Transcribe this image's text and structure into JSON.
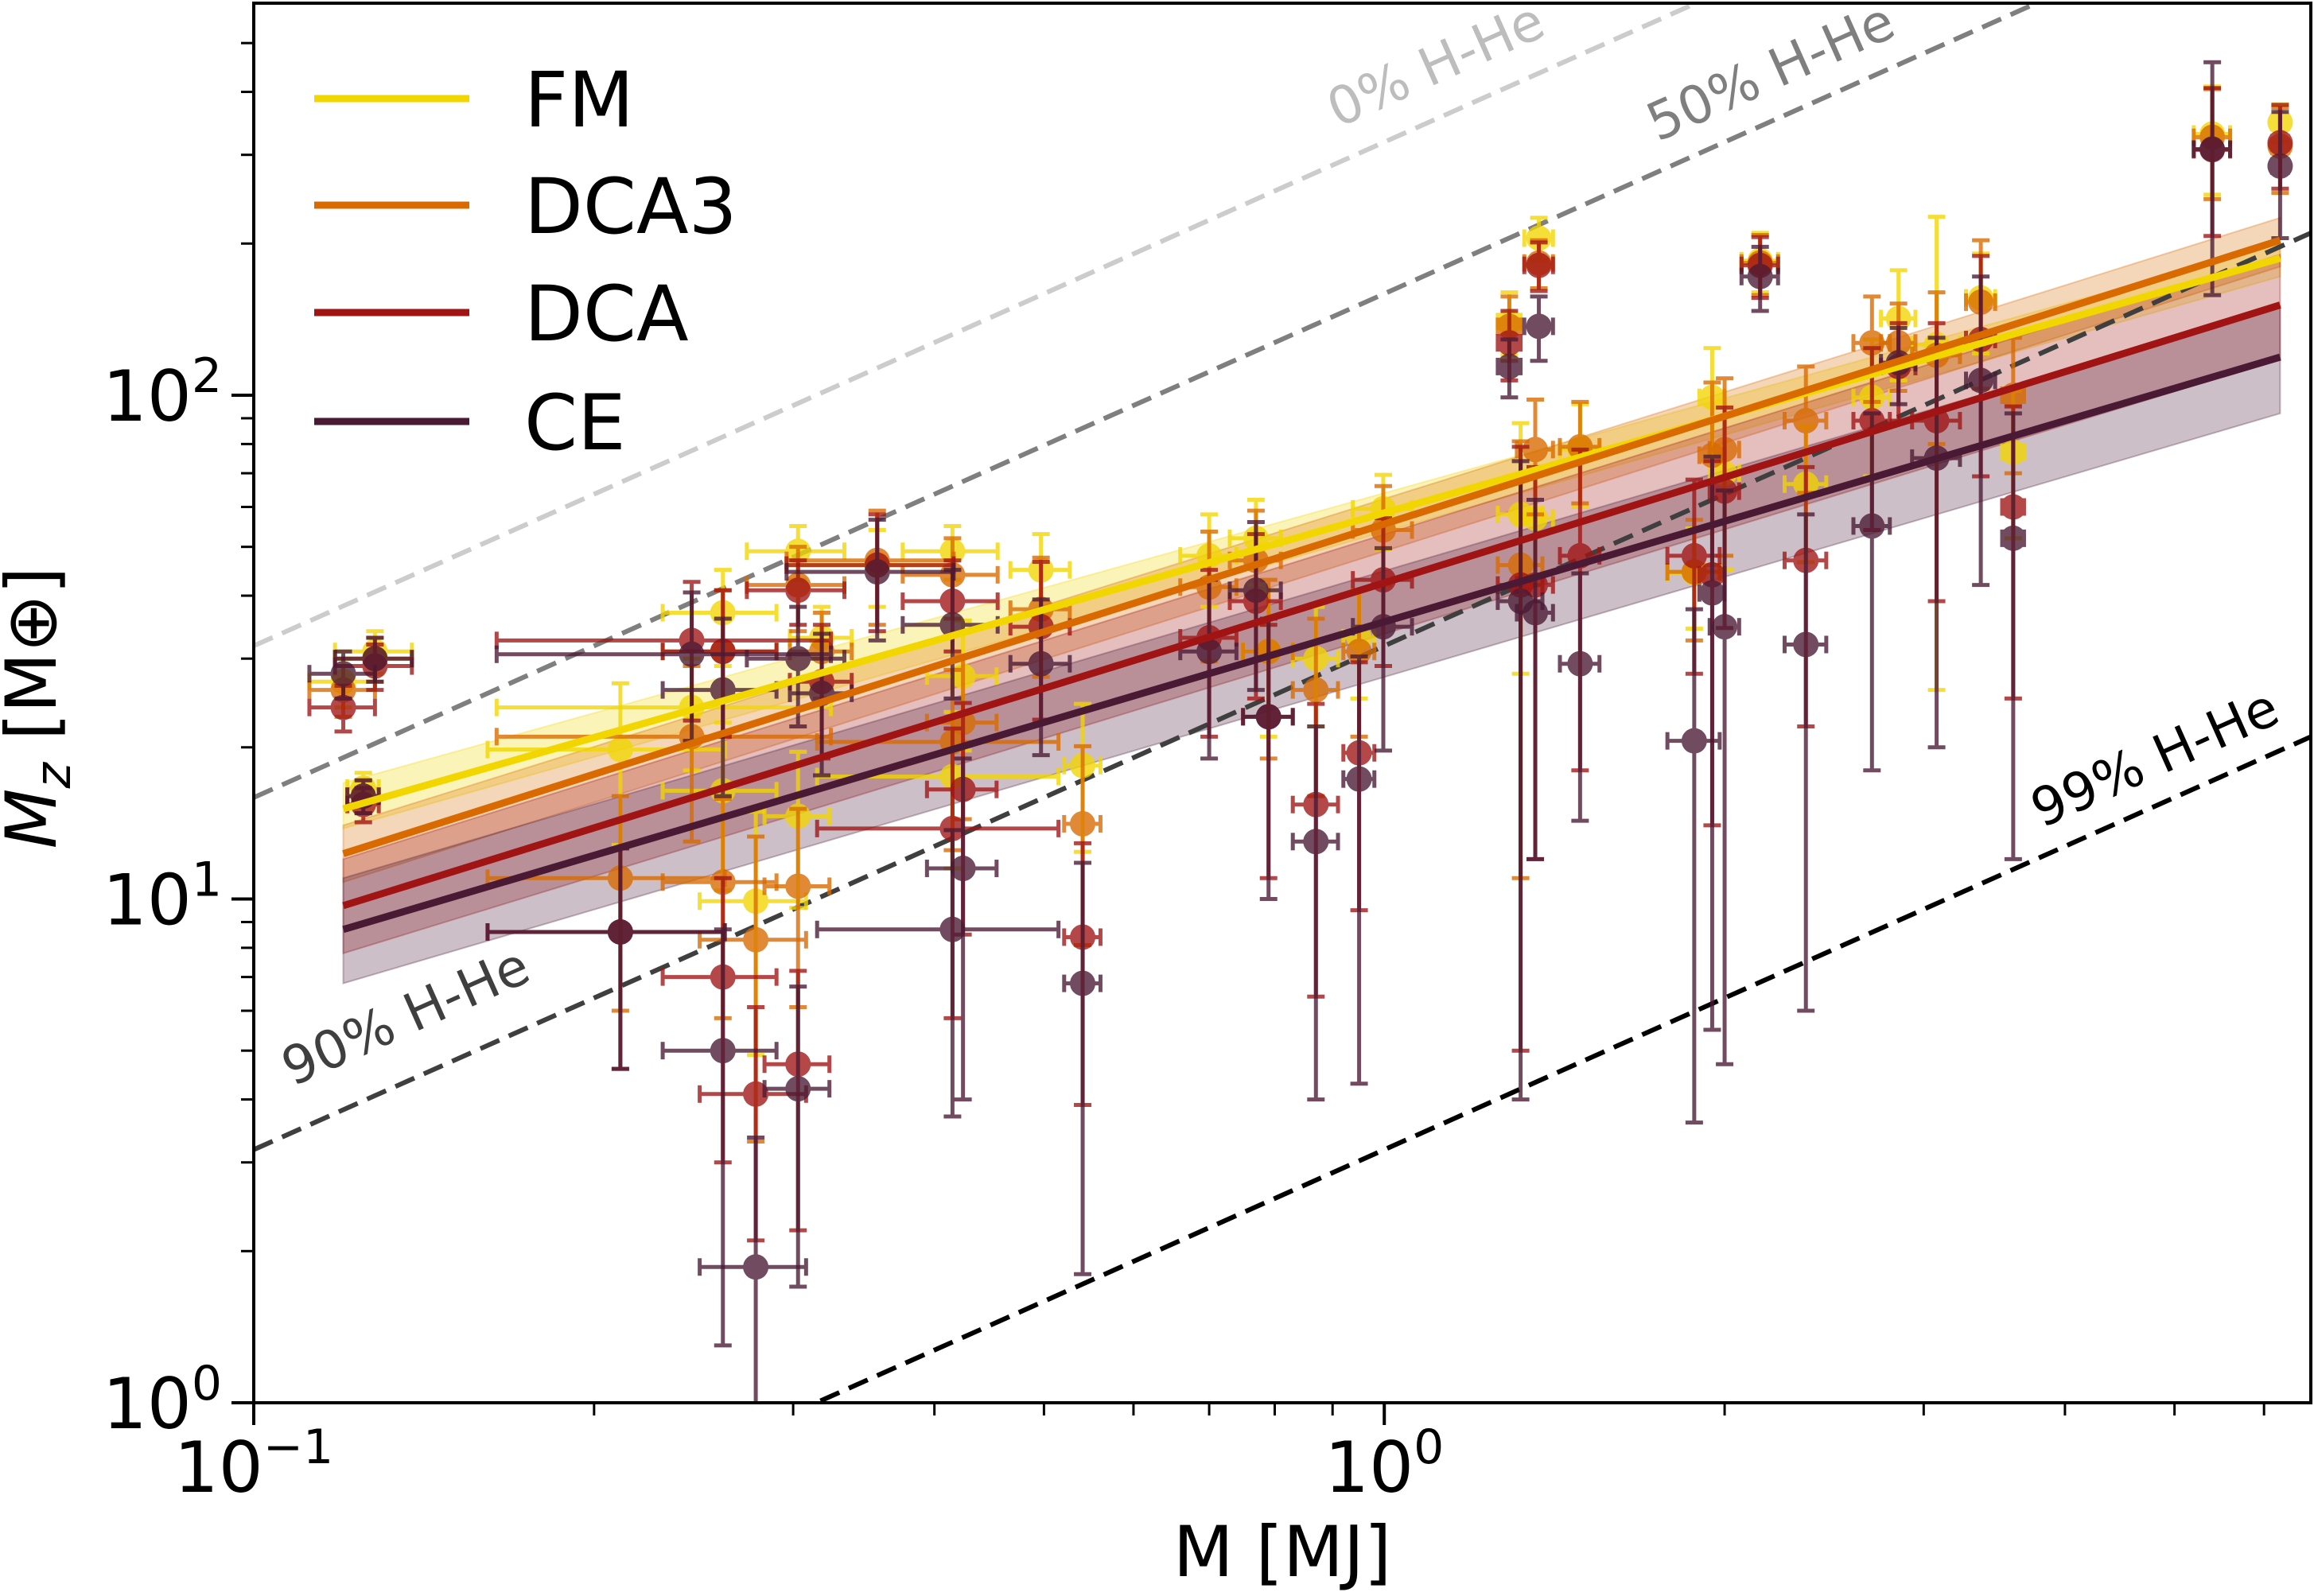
{
  "chart_data": {
    "type": "scatter",
    "xlabel": "M [MJ]",
    "ylabel": {
      "main": "M",
      "sub": "z",
      "unit": " [M⊕]"
    },
    "xscale": "log",
    "yscale": "log",
    "xlim": [
      0.1,
      6.6
    ],
    "ylim": [
      1,
      600
    ],
    "grid": false,
    "legend_placement": "top-left",
    "x_ticks": [
      {
        "base": "10",
        "exp": "−1",
        "value": 0.1
      },
      {
        "base": "10",
        "exp": "0",
        "value": 1
      }
    ],
    "y_ticks": [
      {
        "base": "10",
        "exp": "0",
        "value": 1
      },
      {
        "base": "10",
        "exp": "1",
        "value": 10
      },
      {
        "base": "10",
        "exp": "2",
        "value": 100
      }
    ],
    "models": [
      {
        "key": "FM",
        "name": "FM",
        "color": "#f2d600",
        "fit": {
          "x": [
            0.12,
            6.2
          ],
          "y": [
            15.1,
            187
          ],
          "band_lo": [
            13.8,
            172
          ],
          "band_hi": [
            17.0,
            200
          ]
        }
      },
      {
        "key": "DCA3",
        "name": "DCA3",
        "color": "#d86a00",
        "fit": {
          "x": [
            0.12,
            6.2
          ],
          "y": [
            12.3,
            203
          ],
          "band_lo": [
            10.8,
            180
          ],
          "band_hi": [
            14.0,
            225
          ]
        }
      },
      {
        "key": "DCA",
        "name": "DCA",
        "color": "#a01414",
        "fit": {
          "x": [
            0.12,
            6.2
          ],
          "y": [
            9.7,
            151
          ],
          "band_lo": [
            7.8,
            118
          ],
          "band_hi": [
            12.0,
            190
          ]
        }
      },
      {
        "key": "CE",
        "name": "CE",
        "color": "#4a1a35",
        "fit": {
          "x": [
            0.12,
            6.2
          ],
          "y": [
            8.7,
            119
          ],
          "band_lo": [
            6.8,
            92
          ],
          "band_hi": [
            11.0,
            150
          ]
        }
      }
    ],
    "reference_lines": [
      {
        "label": "0% H-He",
        "factor": 318,
        "color": "#cccccc",
        "label_color": "#bdbdbd"
      },
      {
        "label": "50% H-He",
        "factor": 159,
        "color": "#7f7f7f",
        "label_color": "#7f7f7f"
      },
      {
        "label": "90% H-He",
        "factor": 31.8,
        "color": "#3f3f3f",
        "label_color": "#3f3f3f"
      },
      {
        "label": "99% H-He",
        "factor": 3.18,
        "color": "#000000",
        "label_color": "#000000"
      }
    ],
    "planets": [
      {
        "m": 0.12,
        "m_err": 0.008,
        "FM": [
          27,
          3
        ],
        "DCA3": [
          26,
          3
        ],
        "DCA": [
          24,
          2.5
        ],
        "CE": [
          28,
          3
        ]
      },
      {
        "m": 0.128,
        "m_err": 0.01,
        "FM": [
          31,
          3
        ],
        "DCA3": [
          30,
          3
        ],
        "DCA": [
          29,
          3
        ],
        "CE": [
          30,
          3
        ]
      },
      {
        "m": 0.125,
        "m_err": 0.004,
        "FM": [
          16.6,
          1.2
        ],
        "DCA3": [
          16,
          1.2
        ],
        "DCA": [
          15.4,
          1.2
        ],
        "CE": [
          16,
          1.2
        ]
      },
      {
        "m": 0.211,
        "m_err": 0.05,
        "FM": [
          19.8,
          7
        ],
        "DCA3": [
          11,
          5
        ],
        "DCA": [
          8.6,
          4
        ],
        "CE": [
          8.6,
          4
        ]
      },
      {
        "m": 0.244,
        "m_err": 0.08,
        "FM": [
          24,
          6
        ],
        "DCA3": [
          21,
          8
        ],
        "DCA": [
          32.6,
          10
        ],
        "CE": [
          30.6,
          10
        ]
      },
      {
        "m": 0.26,
        "m_err": 0.03,
        "FM": [
          16.4,
          6
        ],
        "DCA3": [
          10.8,
          5
        ],
        "DCA": [
          7,
          4
        ],
        "CE": [
          5,
          3.7
        ]
      },
      {
        "m": 0.26,
        "m_err": 0.03,
        "FM": [
          37,
          8
        ],
        "DCA3": [
          31,
          10
        ],
        "DCA": [
          31,
          10
        ],
        "CE": [
          26,
          10
        ]
      },
      {
        "m": 0.278,
        "m_err": 0.03,
        "FM": [
          9.9,
          5
        ],
        "DCA3": [
          8.3,
          5
        ],
        "DCA": [
          4.1,
          2
        ],
        "CE": [
          1.86,
          1.5
        ]
      },
      {
        "m": 0.303,
        "m_err": 0.02,
        "FM": [
          14.6,
          5
        ],
        "DCA3": [
          10.6,
          4.5
        ],
        "DCA": [
          4.7,
          2.5
        ],
        "CE": [
          4.2,
          2.5
        ]
      },
      {
        "m": 0.303,
        "m_err": 0.03,
        "FM": [
          49,
          6
        ],
        "DCA3": [
          42,
          8
        ],
        "DCA": [
          41,
          6
        ],
        "CE": [
          30,
          8
        ]
      },
      {
        "m": 0.318,
        "m_err": 0.02,
        "FM": [
          33,
          5
        ],
        "DCA3": [
          31,
          6
        ],
        "DCA": [
          27,
          8
        ],
        "CE": [
          25.6,
          8
        ]
      },
      {
        "m": 0.356,
        "m_err": 0.06,
        "FM": [
          46,
          8
        ],
        "DCA3": [
          47,
          12
        ],
        "DCA": [
          46,
          12
        ],
        "CE": [
          44.6,
          12
        ]
      },
      {
        "m": 0.415,
        "m_err": 0.04,
        "FM": [
          49,
          6
        ],
        "DCA3": [
          44,
          8
        ],
        "DCA": [
          39,
          8
        ],
        "CE": [
          35,
          10
        ]
      },
      {
        "m": 0.415,
        "m_err": 0.1,
        "FM": [
          17.5,
          6
        ],
        "DCA3": [
          20.5,
          8
        ],
        "DCA": [
          13.8,
          8
        ],
        "CE": [
          8.7,
          5
        ]
      },
      {
        "m": 0.424,
        "m_err": 0.03,
        "FM": [
          27.7,
          8
        ],
        "DCA3": [
          22.4,
          8
        ],
        "DCA": [
          16.5,
          8
        ],
        "CE": [
          11.5,
          7.5
        ]
      },
      {
        "m": 0.497,
        "m_err": 0.03,
        "FM": [
          45,
          8
        ],
        "DCA3": [
          37.6,
          10
        ],
        "DCA": [
          34.7,
          12
        ],
        "CE": [
          29.3,
          10
        ]
      },
      {
        "m": 0.541,
        "m_err": 0.02,
        "FM": [
          18.4,
          6
        ],
        "DCA3": [
          14.1,
          6
        ],
        "DCA": [
          8.4,
          4.5
        ],
        "CE": [
          6.8,
          5
        ]
      },
      {
        "m": 0.7,
        "m_err": 0.04,
        "FM": [
          48,
          10
        ],
        "DCA3": [
          41.6,
          12
        ],
        "DCA": [
          33,
          12
        ],
        "CE": [
          31,
          12
        ]
      },
      {
        "m": 0.77,
        "m_err": 0.04,
        "FM": [
          52,
          10
        ],
        "DCA3": [
          47,
          12
        ],
        "DCA": [
          39,
          14
        ],
        "CE": [
          41,
          15
        ]
      },
      {
        "m": 0.79,
        "m_err": 0.04,
        "FM": [
          31,
          10
        ],
        "DCA3": [
          31,
          12
        ],
        "DCA": [
          23,
          12
        ],
        "CE": [
          23,
          13
        ]
      },
      {
        "m": 0.87,
        "m_err": 0.04,
        "FM": [
          30,
          8
        ],
        "DCA3": [
          26,
          10
        ],
        "DCA": [
          15.4,
          9
        ],
        "CE": [
          13,
          9
        ]
      },
      {
        "m": 0.95,
        "m_err": 0.03,
        "FM": [
          33,
          8
        ],
        "DCA3": [
          31,
          10
        ],
        "DCA": [
          19.5,
          10
        ],
        "CE": [
          17.3,
          13
        ]
      },
      {
        "m": 0.998,
        "m_err": 0.06,
        "FM": [
          59.5,
          10
        ],
        "DCA3": [
          54,
          12
        ],
        "DCA": [
          43,
          14
        ],
        "CE": [
          34.7,
          15
        ]
      },
      {
        "m": 1.29,
        "m_err": 0.03,
        "FM": [
          140,
          20
        ],
        "DCA3": [
          137,
          20
        ],
        "DCA": [
          127,
          20
        ],
        "CE": [
          114,
          15
        ]
      },
      {
        "m": 1.37,
        "m_err": 0.04,
        "FM": [
          205,
          20
        ],
        "DCA3": [
          183,
          20
        ],
        "DCA": [
          181,
          20
        ],
        "CE": [
          137,
          20
        ]
      },
      {
        "m": 1.32,
        "m_err": 0.06,
        "FM": [
          58,
          30
        ],
        "DCA3": [
          46,
          35
        ],
        "DCA": [
          42,
          37
        ],
        "CE": [
          39,
          35
        ]
      },
      {
        "m": 1.36,
        "m_err": 0.05,
        "FM": [
          57,
          15
        ],
        "DCA3": [
          78,
          20
        ],
        "DCA": [
          42,
          30
        ],
        "CE": [
          37,
          25
        ]
      },
      {
        "m": 1.49,
        "m_err": 0.06,
        "FM": [
          78,
          18
        ],
        "DCA3": [
          79,
          18
        ],
        "DCA": [
          48,
          30
        ],
        "CE": [
          29.3,
          15
        ]
      },
      {
        "m": 1.88,
        "m_err": 0.1,
        "FM": [
          44.4,
          10
        ],
        "DCA3": [
          44.6,
          12
        ],
        "DCA": [
          48,
          20
        ],
        "CE": [
          20.6,
          17
        ]
      },
      {
        "m": 2.0,
        "m_err": 0.06,
        "FM": [
          70,
          25
        ],
        "DCA3": [
          78,
          30
        ],
        "DCA": [
          64.5,
          30
        ],
        "CE": [
          34.7,
          30
        ]
      },
      {
        "m": 1.95,
        "m_err": 0.05,
        "FM": [
          99,
          25
        ],
        "DCA3": [
          76,
          30
        ],
        "DCA": [
          44,
          30
        ],
        "CE": [
          40.5,
          35
        ]
      },
      {
        "m": 2.15,
        "m_err": 0.08,
        "FM": [
          185,
          25
        ],
        "DCA3": [
          183,
          25
        ],
        "DCA": [
          181,
          25
        ],
        "CE": [
          172,
          25
        ]
      },
      {
        "m": 2.36,
        "m_err": 0.1,
        "FM": [
          66.6,
          20
        ],
        "DCA3": [
          89,
          25
        ],
        "DCA": [
          47,
          25
        ],
        "CE": [
          32,
          26
        ]
      },
      {
        "m": 2.7,
        "m_err": 0.1,
        "FM": [
          99,
          30
        ],
        "DCA3": [
          127,
          30
        ],
        "DCA": [
          89,
          35
        ],
        "CE": [
          55,
          37
        ]
      },
      {
        "m": 2.85,
        "m_err": 0.1,
        "FM": [
          142,
          35
        ],
        "DCA3": [
          127,
          25
        ],
        "DCA": [
          114,
          25
        ],
        "CE": [
          116,
          20
        ]
      },
      {
        "m": 3.08,
        "m_err": 0.15,
        "FM": [
          126,
          100
        ],
        "DCA3": [
          120,
          40
        ],
        "DCA": [
          89,
          50
        ],
        "CE": [
          75,
          55
        ]
      },
      {
        "m": 3.37,
        "m_err": 0.1,
        "FM": [
          156,
          35
        ],
        "DCA3": [
          153,
          50
        ],
        "DCA": [
          129,
          60
        ],
        "CE": [
          107,
          65
        ]
      },
      {
        "m": 3.6,
        "m_err": 0.08,
        "FM": [
          77,
          25
        ],
        "DCA3": [
          100,
          30
        ],
        "DCA": [
          60,
          35
        ],
        "CE": [
          52,
          40
        ]
      },
      {
        "m": 5.4,
        "m_err": 0.2,
        "FM": [
          330,
          80
        ],
        "DCA3": [
          325,
          80
        ],
        "DCA": [
          307,
          100
        ],
        "CE": [
          308,
          150
        ]
      },
      {
        "m": 6.2,
        "m_err": 0.1,
        "FM": [
          348,
          30
        ],
        "DCA3": [
          312,
          60
        ],
        "DCA": [
          317,
          60
        ],
        "CE": [
          285,
          80
        ]
      }
    ]
  }
}
